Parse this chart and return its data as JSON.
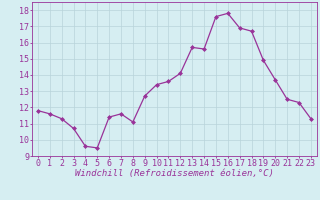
{
  "x": [
    0,
    1,
    2,
    3,
    4,
    5,
    6,
    7,
    8,
    9,
    10,
    11,
    12,
    13,
    14,
    15,
    16,
    17,
    18,
    19,
    20,
    21,
    22,
    23
  ],
  "y": [
    11.8,
    11.6,
    11.3,
    10.7,
    9.6,
    9.5,
    11.4,
    11.6,
    11.1,
    12.7,
    13.4,
    13.6,
    14.1,
    15.7,
    15.6,
    17.6,
    17.8,
    16.9,
    16.7,
    14.9,
    13.7,
    12.5,
    12.3,
    11.3
  ],
  "line_color": "#993399",
  "marker": "D",
  "markersize": 2.0,
  "linewidth": 0.9,
  "xlabel": "Windchill (Refroidissement éolien,°C)",
  "xlim": [
    -0.5,
    23.5
  ],
  "ylim": [
    9,
    18.5
  ],
  "yticks": [
    9,
    10,
    11,
    12,
    13,
    14,
    15,
    16,
    17,
    18
  ],
  "xticks": [
    0,
    1,
    2,
    3,
    4,
    5,
    6,
    7,
    8,
    9,
    10,
    11,
    12,
    13,
    14,
    15,
    16,
    17,
    18,
    19,
    20,
    21,
    22,
    23
  ],
  "bg_color": "#d6eef2",
  "grid_color": "#b8d4da",
  "tick_color": "#993399",
  "label_color": "#993399",
  "axis_color": "#993399",
  "xlabel_fontsize": 6.5,
  "tick_fontsize": 6
}
